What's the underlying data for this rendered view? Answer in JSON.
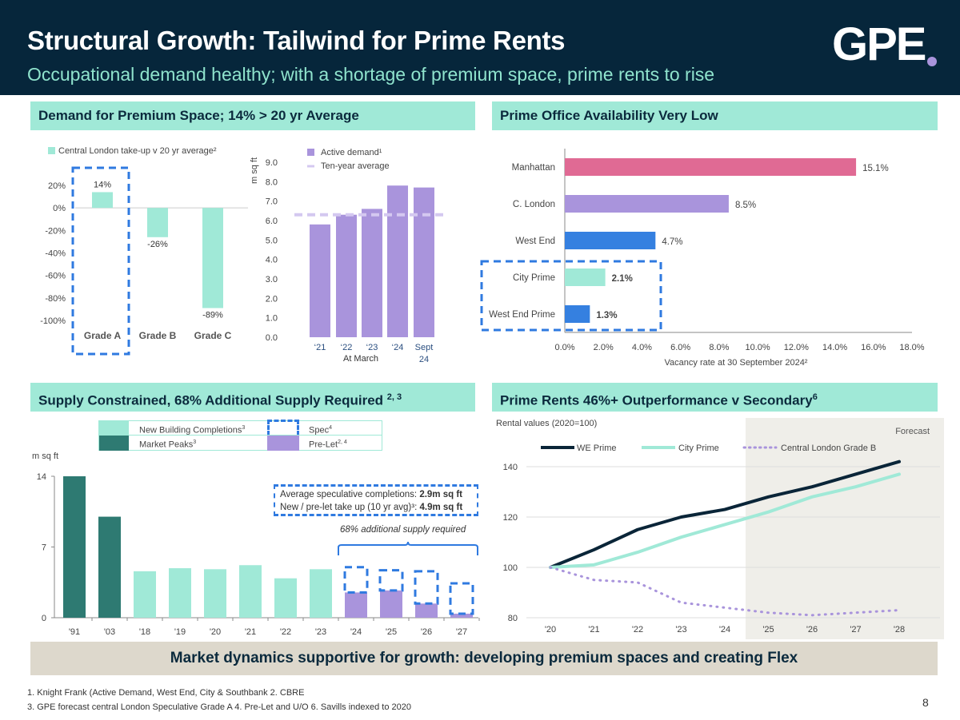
{
  "header": {
    "title": "Structural Growth: Tailwind for Prime Rents",
    "subtitle": "Occupational demand healthy; with a shortage of premium space, prime rents to rise",
    "logo_text": "GPE",
    "colors": {
      "navy": "#06263b",
      "mint": "#a0e9d7",
      "purple": "#a994dc",
      "dashed_blue": "#2f7ae0"
    }
  },
  "sections": {
    "demand": "Demand for Premium Space; 14% > 20 yr Average",
    "availability": "Prime Office Availability Very Low",
    "supply": "Supply Constrained, 68% Additional Supply Required",
    "supply_sup": "2, 3",
    "rents": "Prime Rents 46%+ Outperformance v Secondary",
    "rents_sup": "6"
  },
  "chart_data": [
    {
      "id": "takeup",
      "type": "bar",
      "title": "",
      "legend": "Central London take-up v 20 yr average²",
      "categories": [
        "Grade A",
        "Grade B",
        "Grade C"
      ],
      "values": [
        14,
        -26,
        -89
      ],
      "data_labels": [
        "14%",
        "-26%",
        "-89%"
      ],
      "ylim": [
        -100,
        20
      ],
      "yticks": [
        "20%",
        "0%",
        "-20%",
        "-40%",
        "-60%",
        "-80%",
        "-100%"
      ],
      "ytick_values": [
        20,
        0,
        -20,
        -40,
        -60,
        -80,
        -100
      ],
      "highlight": "Grade A",
      "color": "#a0e9d7"
    },
    {
      "id": "active_demand",
      "type": "bar",
      "legend": [
        "Active demand¹",
        "Ten-year average"
      ],
      "ylabel": "m sq ft",
      "categories": [
        "‘21",
        "‘22",
        "‘23",
        "‘24",
        "Sept 24"
      ],
      "xlabel_group": "At March",
      "values": [
        5.8,
        6.3,
        6.6,
        7.8,
        7.7
      ],
      "ten_year_average": 6.3,
      "ylim": [
        0,
        9
      ],
      "yticks": [
        "0.0",
        "1.0",
        "2.0",
        "3.0",
        "4.0",
        "5.0",
        "6.0",
        "7.0",
        "8.0",
        "9.0"
      ],
      "color": "#a994dc",
      "avg_color": "#d4c8f0"
    },
    {
      "id": "vacancy",
      "type": "bar",
      "orientation": "horizontal",
      "categories": [
        "Manhattan",
        "C. London",
        "West End",
        "City Prime",
        "West End Prime"
      ],
      "values": [
        15.1,
        8.5,
        4.7,
        2.1,
        1.3
      ],
      "data_labels": [
        "15.1%",
        "8.5%",
        "4.7%",
        "2.1%",
        "1.3%"
      ],
      "bold_labels": [
        false,
        false,
        false,
        true,
        true
      ],
      "colors": [
        "#e06a94",
        "#a994dc",
        "#3580e0",
        "#a0e9d7",
        "#3580e0"
      ],
      "xlabel": "Vacancy rate at 30 September 2024²",
      "xlim": [
        0,
        18
      ],
      "xticks": [
        "0.0%",
        "2.0%",
        "4.0%",
        "6.0%",
        "8.0%",
        "10.0%",
        "12.0%",
        "14.0%",
        "16.0%",
        "18.0%"
      ],
      "highlight": [
        "City Prime",
        "West End Prime"
      ]
    },
    {
      "id": "supply",
      "type": "bar",
      "ylabel": "m sq ft",
      "categories": [
        "'91",
        "'03",
        "'18",
        "'19",
        "'20",
        "'21",
        "'22",
        "'23",
        "'24",
        "'25",
        "'26",
        "'27"
      ],
      "series": [
        {
          "name": "Market Peaks³",
          "values": [
            14,
            10,
            null,
            null,
            null,
            null,
            null,
            null,
            null,
            null,
            null,
            null
          ],
          "color": "#2e7a72"
        },
        {
          "name": "New Building Completions³",
          "values": [
            null,
            null,
            4.6,
            4.9,
            4.8,
            5.2,
            3.9,
            4.8,
            null,
            null,
            null,
            null
          ],
          "color": "#a0e9d7"
        },
        {
          "name": "Pre-Let²˒⁴",
          "values": [
            null,
            null,
            null,
            null,
            null,
            null,
            null,
            null,
            2.5,
            2.7,
            1.4,
            0.4
          ],
          "color": "#a994dc"
        },
        {
          "name": "Spec⁴",
          "values": [
            null,
            null,
            null,
            null,
            null,
            null,
            null,
            null,
            2.5,
            2.0,
            3.2,
            3.0
          ],
          "style": "dashed-outline"
        }
      ],
      "ylim": [
        0,
        14
      ],
      "yticks": [
        "0",
        "7",
        "14"
      ],
      "legend": [
        {
          "label": "New Building Completions",
          "sup": "3",
          "swatch": "#a0e9d7"
        },
        {
          "label": "Spec",
          "sup": "4",
          "swatch": "dashed"
        },
        {
          "label": "Market Peaks",
          "sup": "3",
          "swatch": "#2e7a72"
        },
        {
          "label": "Pre-Let",
          "sup": "2, 4",
          "swatch": "#a994dc"
        }
      ],
      "annotation_lines": [
        {
          "text": "Average speculative completions: ",
          "bold": "2.9m sq ft"
        },
        {
          "text": "New / pre-let take up (10 yr avg)³: ",
          "bold": "4.9m sq ft"
        }
      ],
      "brace_label": "68% additional supply required"
    },
    {
      "id": "rents",
      "type": "line",
      "ylabel": "Rental values (2020=100)",
      "x": [
        "'20",
        "'21",
        "'22",
        "'23",
        "'24",
        "'25",
        "'26",
        "'27",
        "'28"
      ],
      "series": [
        {
          "name": "WE Prime",
          "values": [
            100,
            107,
            115,
            120,
            123,
            128,
            132,
            137,
            142
          ],
          "color": "#0a2538",
          "style": "solid"
        },
        {
          "name": "City Prime",
          "values": [
            100,
            101,
            106,
            112,
            117,
            122,
            128,
            132,
            137
          ],
          "color": "#a0e9d7",
          "style": "solid"
        },
        {
          "name": "Central London Grade B",
          "values": [
            100,
            95,
            94,
            86,
            84,
            82,
            81,
            82,
            83
          ],
          "color": "#a994dc",
          "style": "dotted"
        }
      ],
      "ylim": [
        80,
        145
      ],
      "yticks": [
        "80",
        "100",
        "120",
        "140"
      ],
      "forecast_label": "Forecast",
      "forecast_from": "'24.5"
    }
  ],
  "bottom_banner": "Market dynamics supportive for growth: developing premium spaces and creating Flex",
  "footnotes": [
    "1. Knight Frank (Active Demand, West End, City & Southbank  2. CBRE",
    "3. GPE forecast central London Speculative Grade A   4. Pre-Let and U/O   6. Savills indexed to 2020"
  ],
  "page_number": "8"
}
